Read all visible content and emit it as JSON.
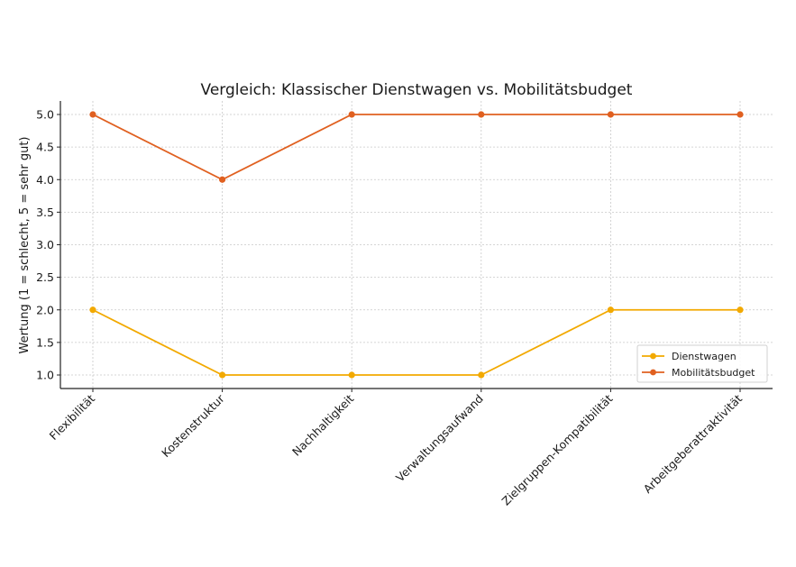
{
  "chart_data": {
    "type": "line",
    "title": "Vergleich: Klassischer Dienstwagen vs. Mobilitätsbudget",
    "xlabel": "",
    "ylabel": "Wertung (1 = schlecht, 5 = sehr gut)",
    "categories": [
      "Flexibilität",
      "Kostenstruktur",
      "Nachhaltigkeit",
      "Verwaltungsaufwand",
      "Zielgruppen-Kompatibilität",
      "Arbeitgeberattraktivität"
    ],
    "series": [
      {
        "name": "Dienstwagen",
        "color": "#F2A900",
        "values": [
          2,
          1,
          1,
          1,
          2,
          2
        ]
      },
      {
        "name": "Mobilitätsbudget",
        "color": "#E06020",
        "values": [
          5,
          4,
          5,
          5,
          5,
          5
        ]
      }
    ],
    "ylim": [
      0.8,
      5.2
    ],
    "yticks": [
      "1.0",
      "1.5",
      "2.0",
      "2.5",
      "3.0",
      "3.5",
      "4.0",
      "4.5",
      "5.0"
    ],
    "grid": true,
    "legend_position": "bottom-right"
  }
}
